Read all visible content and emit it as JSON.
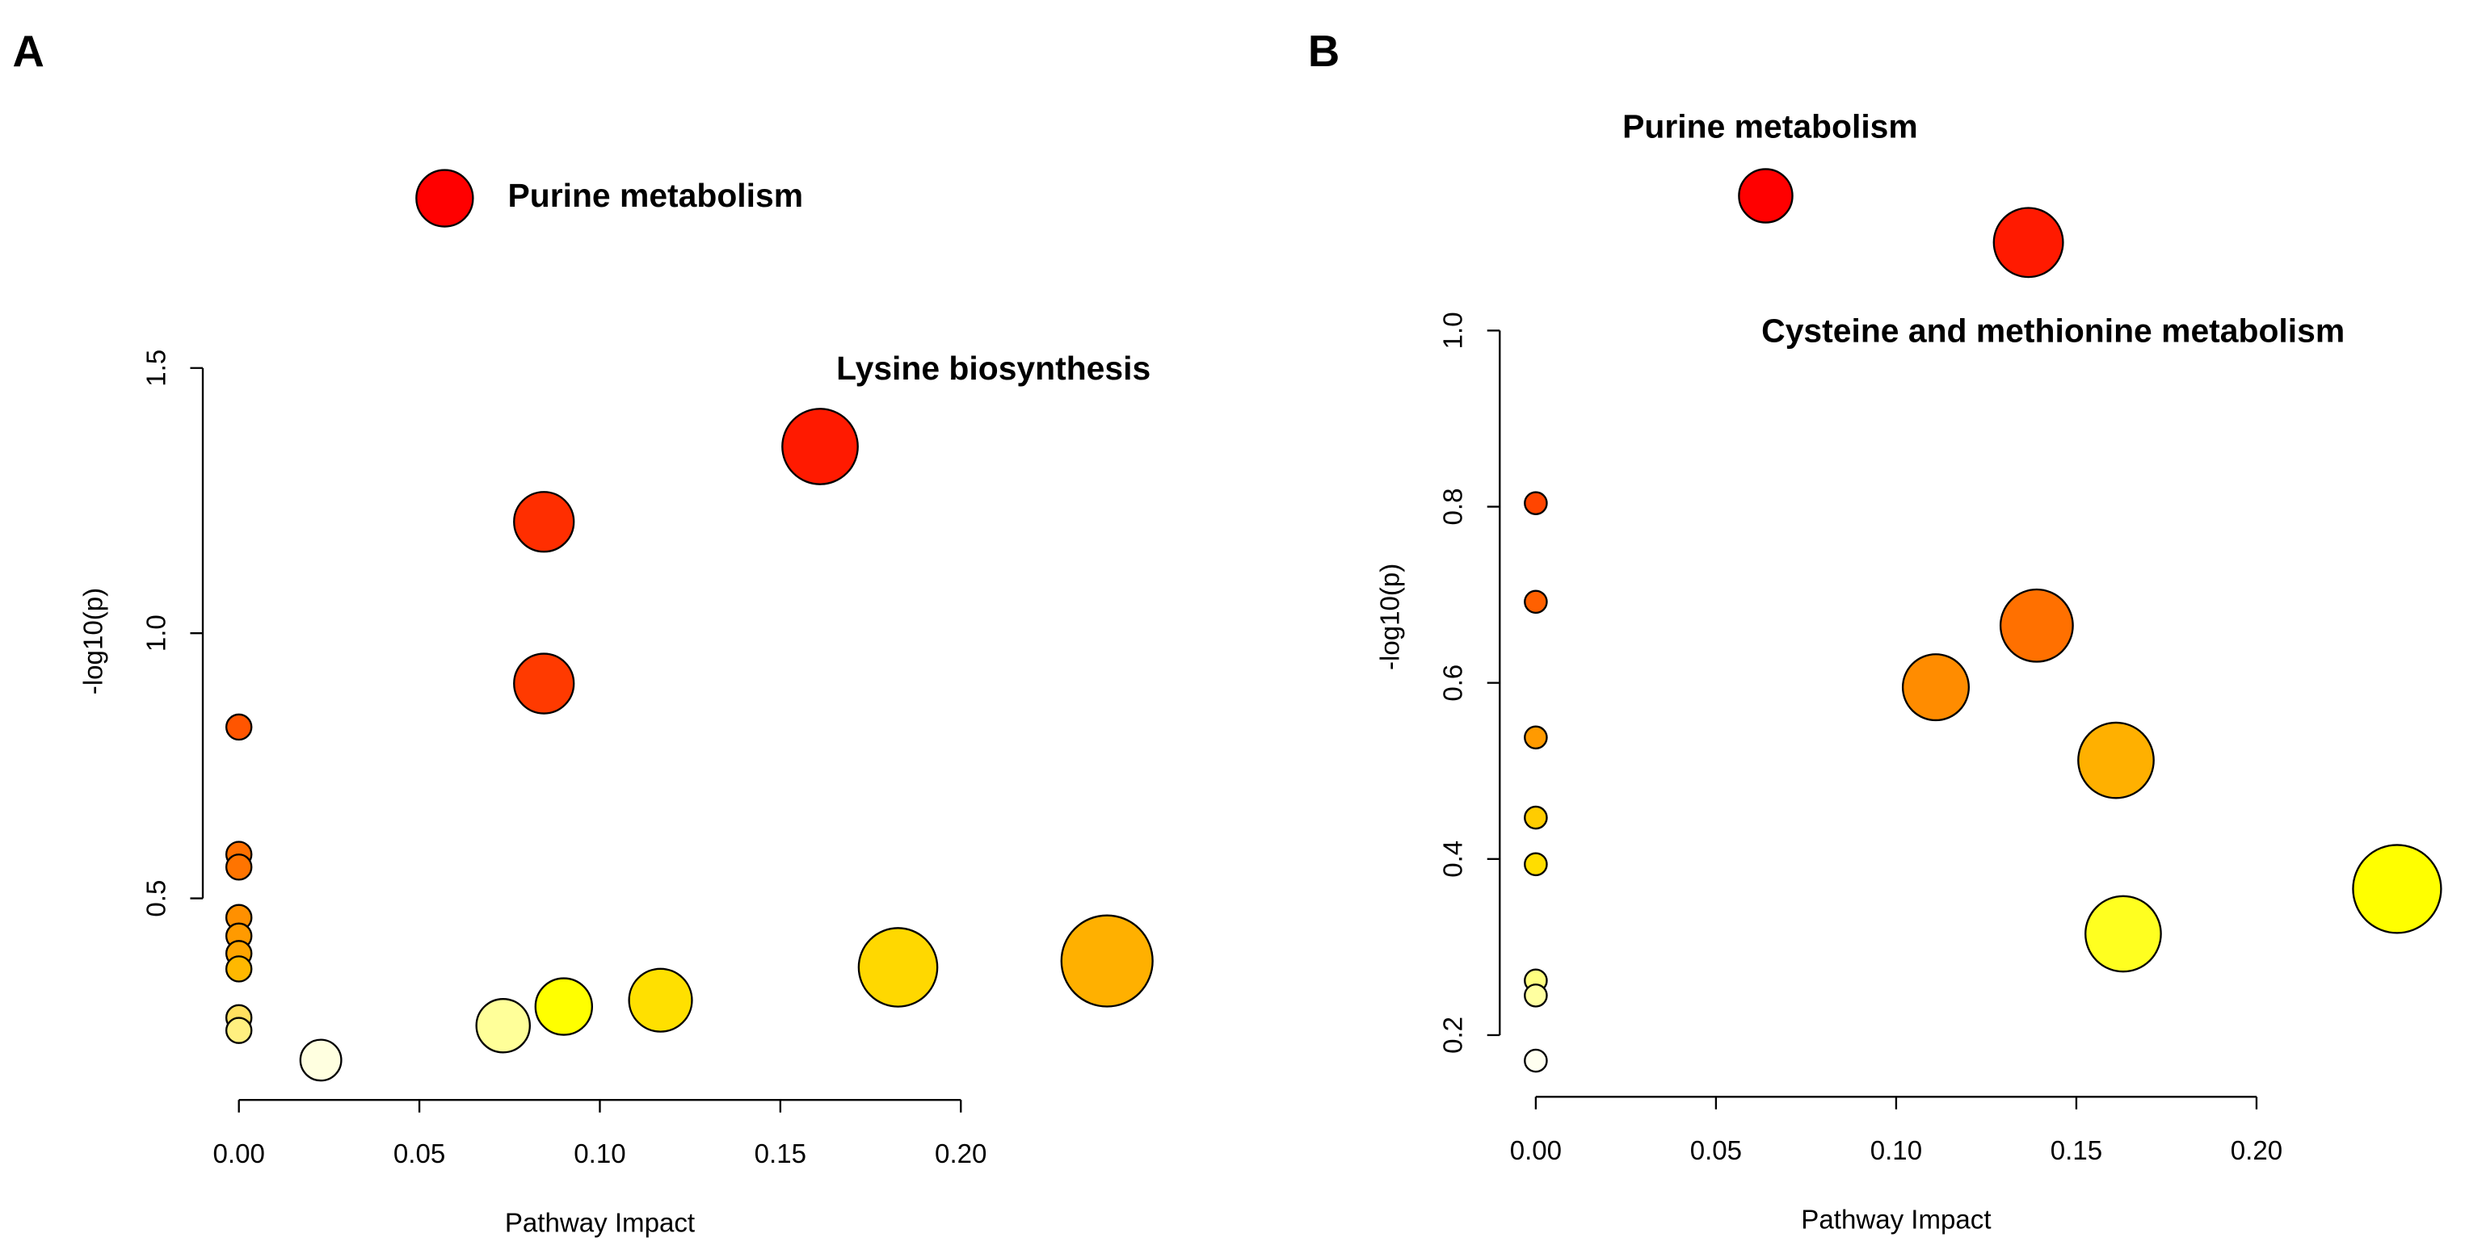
{
  "chart_data": [
    {
      "type": "scatter",
      "panel_label": "A",
      "x_label": "Pathway Impact",
      "y_label": "-log10(p)",
      "xlim": [
        -0.01,
        0.25
      ],
      "ylim": [
        0.12,
        1.85
      ],
      "xticks": [
        {
          "value": 0,
          "label": "0.00"
        },
        {
          "value": 0.05,
          "label": "0.05"
        },
        {
          "value": 0.1,
          "label": "0.10"
        },
        {
          "value": 0.15,
          "label": "0.15"
        },
        {
          "value": 0.2,
          "label": "0.20"
        }
      ],
      "yticks": [
        0.5,
        {
          "value": 1,
          "label": "1.0"
        },
        1.5
      ],
      "x": [
        0.057,
        0.161,
        0.0845,
        0.0845,
        0,
        0,
        0,
        0,
        0,
        0,
        0,
        0,
        0,
        0.0227,
        0.0732,
        0.09,
        0.1168,
        0.1826,
        0.2405
      ],
      "y": [
        1.82,
        1.352,
        1.21,
        0.905,
        0.823,
        0.583,
        0.559,
        0.464,
        0.429,
        0.396,
        0.367,
        0.275,
        0.251,
        0.195,
        0.26,
        0.296,
        0.308,
        0.37,
        0.382
      ],
      "sizes": [
        18,
        24,
        19,
        19,
        8,
        8,
        8,
        8,
        8,
        8,
        8,
        8,
        8,
        13,
        17,
        18,
        20,
        25,
        29
      ],
      "colors": [
        "#ff0000",
        "#ff1a00",
        "#ff2e00",
        "#ff3a00",
        "#ff5500",
        "#ff7000",
        "#ff7400",
        "#ff9000",
        "#ff9a00",
        "#ffa500",
        "#ffb800",
        "#ffe060",
        "#fff080",
        "#ffffe0",
        "#ffff99",
        "#ffff00",
        "#ffe000",
        "#ffd800",
        "#ffb000"
      ],
      "annotations": [
        "Purine metabolism",
        "Lysine biosynthesis"
      ]
    },
    {
      "type": "scatter",
      "panel_label": "B",
      "x_label": "Pathway Impact",
      "y_label": "-log10(p)",
      "xlim": [
        -0.01,
        0.25
      ],
      "ylim": [
        0.13,
        1.22
      ],
      "xticks": [
        {
          "value": 0,
          "label": "0.00"
        },
        {
          "value": 0.05,
          "label": "0.05"
        },
        {
          "value": 0.1,
          "label": "0.10"
        },
        {
          "value": 0.15,
          "label": "0.15"
        },
        {
          "value": 0.2,
          "label": "0.20"
        }
      ],
      "yticks": [
        0.2,
        0.4,
        0.6,
        0.8,
        {
          "value": 1,
          "label": "1.0"
        }
      ],
      "x": [
        0.0638,
        0.1367,
        0,
        0,
        0,
        0,
        0,
        0,
        0,
        0,
        0.111,
        0.139,
        0.161,
        0.163,
        0.239
      ],
      "y": [
        1.153,
        1.1,
        0.804,
        0.692,
        0.538,
        0.447,
        0.394,
        0.262,
        0.245,
        0.171,
        0.595,
        0.665,
        0.512,
        0.315,
        0.366
      ],
      "sizes": [
        17,
        22,
        7,
        7,
        7,
        7,
        7,
        7,
        7,
        7,
        21,
        23,
        24,
        24,
        28
      ],
      "colors": [
        "#ff0000",
        "#ff1a00",
        "#ff4500",
        "#ff6000",
        "#ff9a00",
        "#ffcc00",
        "#ffdd00",
        "#ffff80",
        "#ffffa0",
        "#fffff0",
        "#ff8c00",
        "#ff7000",
        "#ffb000",
        "#ffff20",
        "#ffff00"
      ],
      "annotations": [
        "Purine metabolism",
        "Cysteine and methionine metabolism"
      ]
    }
  ]
}
